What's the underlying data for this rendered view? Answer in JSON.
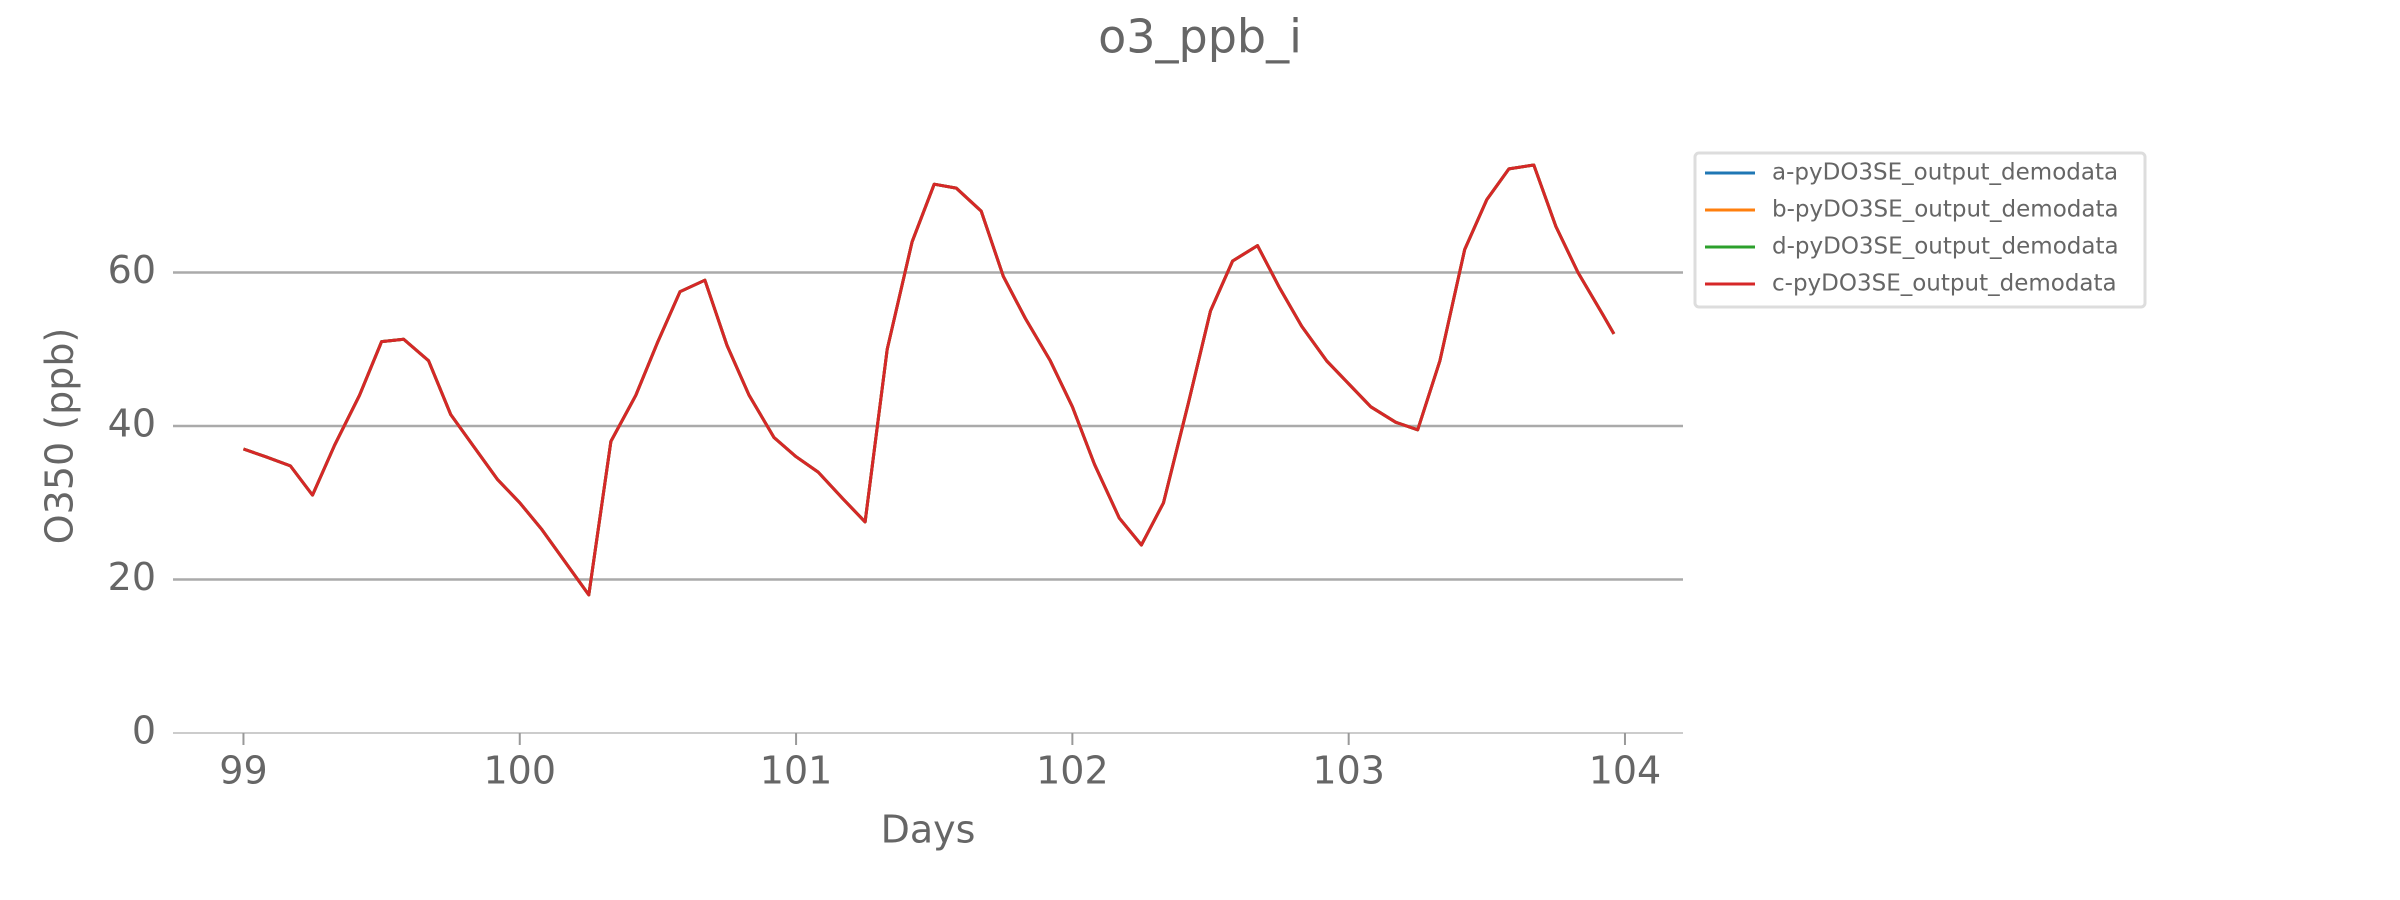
{
  "chart_data": {
    "type": "line",
    "title": "o3_ppb_i",
    "x_label": "Days",
    "y_label": "O350 (ppb)",
    "x": [
      99,
      99.08,
      99.17,
      99.25,
      99.33,
      99.42,
      99.5,
      99.58,
      99.67,
      99.75,
      99.83,
      99.92,
      100,
      100.08,
      100.17,
      100.25,
      100.33,
      100.42,
      100.5,
      100.58,
      100.67,
      100.75,
      100.83,
      100.92,
      101,
      101.08,
      101.17,
      101.25,
      101.33,
      101.42,
      101.5,
      101.58,
      101.67,
      101.75,
      101.83,
      101.92,
      102,
      102.08,
      102.17,
      102.25,
      102.33,
      102.42,
      102.5,
      102.58,
      102.67,
      102.75,
      102.83,
      102.92,
      103,
      103.08,
      103.17,
      103.25,
      103.33,
      103.42,
      103.5,
      103.58,
      103.67,
      103.75,
      103.83,
      103.92,
      103.96
    ],
    "series": [
      {
        "name": "a-pyDO3SE_output_demodata",
        "color": "#1f77b4",
        "values": [
          37,
          36,
          34.8,
          31,
          37.5,
          44,
          51,
          51.3,
          48.5,
          41.5,
          37.5,
          33,
          30,
          26.5,
          22,
          18,
          38,
          44,
          51,
          57.5,
          59,
          50.5,
          44,
          38.5,
          36,
          34,
          30.5,
          27.5,
          50,
          64,
          71.5,
          71,
          68,
          59.5,
          54,
          48.5,
          42.5,
          35,
          28,
          24.5,
          30,
          43,
          55,
          61.5,
          63.5,
          58,
          53,
          48.5,
          45.5,
          42.5,
          40.5,
          39.5,
          48.5,
          63,
          69.5,
          73.5,
          74,
          66,
          60,
          54.5,
          52
        ]
      },
      {
        "name": "b-pyDO3SE_output_demodata",
        "color": "#ff7f0e",
        "values": [
          37,
          36,
          34.8,
          31,
          37.5,
          44,
          51,
          51.3,
          48.5,
          41.5,
          37.5,
          33,
          30,
          26.5,
          22,
          18,
          38,
          44,
          51,
          57.5,
          59,
          50.5,
          44,
          38.5,
          36,
          34,
          30.5,
          27.5,
          50,
          64,
          71.5,
          71,
          68,
          59.5,
          54,
          48.5,
          42.5,
          35,
          28,
          24.5,
          30,
          43,
          55,
          61.5,
          63.5,
          58,
          53,
          48.5,
          45.5,
          42.5,
          40.5,
          39.5,
          48.5,
          63,
          69.5,
          73.5,
          74,
          66,
          60,
          54.5,
          52
        ]
      },
      {
        "name": "d-pyDO3SE_output_demodata",
        "color": "#2ca02c",
        "values": [
          37,
          36,
          34.8,
          31,
          37.5,
          44,
          51,
          51.3,
          48.5,
          41.5,
          37.5,
          33,
          30,
          26.5,
          22,
          18,
          38,
          44,
          51,
          57.5,
          59,
          50.5,
          44,
          38.5,
          36,
          34,
          30.5,
          27.5,
          50,
          64,
          71.5,
          71,
          68,
          59.5,
          54,
          48.5,
          42.5,
          35,
          28,
          24.5,
          30,
          43,
          55,
          61.5,
          63.5,
          58,
          53,
          48.5,
          45.5,
          42.5,
          40.5,
          39.5,
          48.5,
          63,
          69.5,
          73.5,
          74,
          66,
          60,
          54.5,
          52
        ]
      },
      {
        "name": "c-pyDO3SE_output_demodata",
        "color": "#d62728",
        "values": [
          37,
          36,
          34.8,
          31,
          37.5,
          44,
          51,
          51.3,
          48.5,
          41.5,
          37.5,
          33,
          30,
          26.5,
          22,
          18,
          38,
          44,
          51,
          57.5,
          59,
          50.5,
          44,
          38.5,
          36,
          34,
          30.5,
          27.5,
          50,
          64,
          71.5,
          71,
          68,
          59.5,
          54,
          48.5,
          42.5,
          35,
          28,
          24.5,
          30,
          43,
          55,
          61.5,
          63.5,
          58,
          53,
          48.5,
          45.5,
          42.5,
          40.5,
          39.5,
          48.5,
          63,
          69.5,
          73.5,
          74,
          66,
          60,
          54.5,
          52
        ]
      }
    ],
    "xlim": [
      98.745,
      104.21
    ],
    "ylim": [
      0,
      80
    ],
    "xticks": [
      99,
      100,
      101,
      102,
      103,
      104
    ],
    "yticks": [
      0,
      20,
      40,
      60
    ],
    "grid": true
  }
}
